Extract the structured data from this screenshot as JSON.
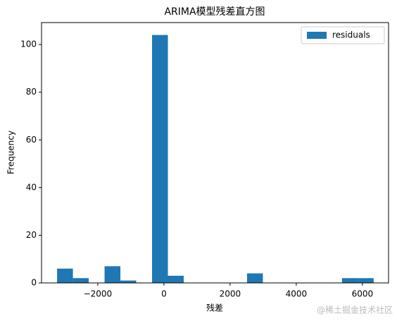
{
  "chart_data": {
    "type": "histogram",
    "title": "ARIMA模型残差直方图",
    "x_label": "残差",
    "y_label": "Frequency",
    "series": [
      {
        "name": "residuals",
        "color": "#1f77b4",
        "bins": [
          -3230,
          -2751.5,
          -2273,
          -1794.5,
          -1316,
          -837.5,
          -359,
          119.5,
          598,
          1076.5,
          1555,
          2033.5,
          2512,
          2990.5,
          3469,
          3947.5,
          4426,
          4904.5,
          5383,
          5861.5,
          6340
        ],
        "values": [
          6,
          2,
          0,
          7,
          1,
          0,
          104,
          3,
          0,
          0,
          0,
          0,
          4,
          0,
          0,
          0,
          0,
          0,
          2,
          2
        ]
      }
    ],
    "xlim": [
      -3700,
      6790
    ],
    "ylim": [
      0,
      109.2
    ],
    "xticks": [
      {
        "value": -2000,
        "label": "−2000"
      },
      0,
      2000,
      4000,
      6000
    ],
    "yticks": [
      0,
      20,
      40,
      60,
      80,
      100
    ],
    "legend": "upper right"
  },
  "watermark": "@稀土掘金技术社区"
}
